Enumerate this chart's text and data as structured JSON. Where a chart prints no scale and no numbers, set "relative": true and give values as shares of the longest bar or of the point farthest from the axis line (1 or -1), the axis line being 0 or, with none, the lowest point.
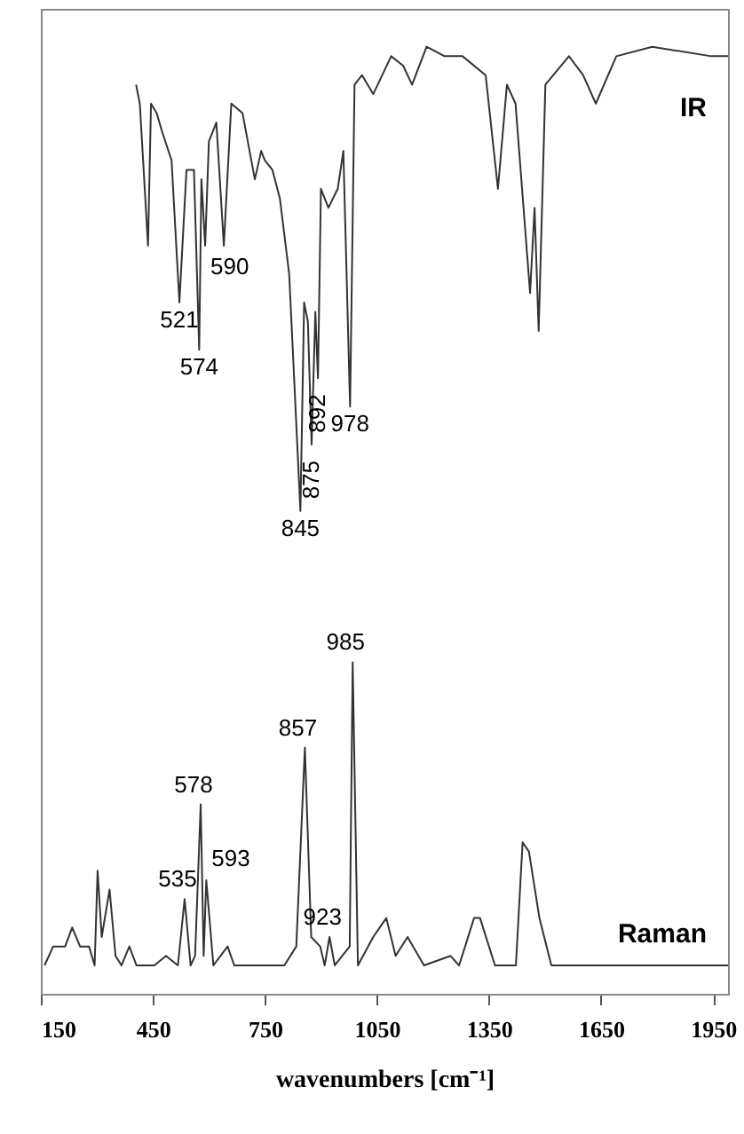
{
  "chart_data": {
    "type": "line",
    "relative": true,
    "xlabel": "wavenumbers [cm⁻¹]",
    "xlim": [
      150,
      1990
    ],
    "xticks": [
      150,
      450,
      750,
      1050,
      1350,
      1650,
      1950
    ],
    "grid": false,
    "tick_labels": "x",
    "marker": "none",
    "line_style": "solid",
    "series": [
      {
        "name": "IR",
        "color": "#333333",
        "x": [
          405,
          415,
          437,
          445,
          460,
          475,
          500,
          521,
          540,
          560,
          574,
          580,
          590,
          600,
          620,
          640,
          660,
          690,
          723,
          740,
          750,
          770,
          790,
          815,
          845,
          855,
          865,
          875,
          885,
          892,
          900,
          920,
          945,
          960,
          978,
          990,
          1010,
          1040,
          1088,
          1120,
          1144,
          1183,
          1231,
          1279,
          1341,
          1374,
          1398,
          1421,
          1460,
          1472,
          1483,
          1501,
          1564,
          1602,
          1636,
          1691,
          1787,
          1945,
          1990
        ],
        "values": [
          0.96,
          0.94,
          0.79,
          0.94,
          0.93,
          0.91,
          0.88,
          0.73,
          0.87,
          0.87,
          0.68,
          0.86,
          0.79,
          0.9,
          0.92,
          0.79,
          0.94,
          0.93,
          0.86,
          0.89,
          0.88,
          0.87,
          0.84,
          0.76,
          0.51,
          0.73,
          0.71,
          0.58,
          0.72,
          0.65,
          0.85,
          0.83,
          0.85,
          0.89,
          0.62,
          0.96,
          0.97,
          0.95,
          0.99,
          0.98,
          0.96,
          1.0,
          0.99,
          0.99,
          0.97,
          0.85,
          0.96,
          0.94,
          0.74,
          0.83,
          0.7,
          0.96,
          0.99,
          0.97,
          0.94,
          0.99,
          1.0,
          0.99,
          0.99
        ]
      },
      {
        "name": "Raman",
        "color": "#333333",
        "x": [
          160,
          183,
          215,
          234,
          255,
          279,
          294,
          302,
          313,
          334,
          350,
          366,
          387,
          406,
          454,
          485,
          517,
          535,
          551,
          563,
          578,
          586,
          593,
          612,
          650,
          668,
          802,
          834,
          857,
          874,
          898,
          910,
          923,
          937,
          977,
          985,
          999,
          1040,
          1075,
          1100,
          1132,
          1176,
          1247,
          1270,
          1310,
          1326,
          1366,
          1422,
          1440,
          1457,
          1485,
          1517,
          1990
        ],
        "values": [
          0.03,
          0.05,
          0.05,
          0.07,
          0.05,
          0.05,
          0.03,
          0.13,
          0.06,
          0.11,
          0.04,
          0.03,
          0.05,
          0.03,
          0.03,
          0.04,
          0.03,
          0.1,
          0.03,
          0.04,
          0.2,
          0.04,
          0.12,
          0.03,
          0.05,
          0.03,
          0.03,
          0.05,
          0.26,
          0.06,
          0.05,
          0.03,
          0.06,
          0.03,
          0.05,
          0.35,
          0.03,
          0.06,
          0.08,
          0.04,
          0.06,
          0.03,
          0.04,
          0.03,
          0.08,
          0.08,
          0.03,
          0.03,
          0.16,
          0.15,
          0.08,
          0.03,
          0.03
        ]
      }
    ],
    "annotations": [
      {
        "text": "521",
        "x": 521,
        "y": 0.73
      },
      {
        "text": "574",
        "x": 574,
        "y": 0.68
      },
      {
        "text": "590",
        "x": 590,
        "y": 0.79
      },
      {
        "text": "845",
        "x": 845,
        "y": 0.51
      },
      {
        "text": "875",
        "x": 875,
        "y": 0.58
      },
      {
        "text": "892",
        "x": 892,
        "y": 0.65
      },
      {
        "text": "978",
        "x": 978,
        "y": 0.62
      },
      {
        "text": "535",
        "x": 535,
        "y": 0.1
      },
      {
        "text": "578",
        "x": 578,
        "y": 0.2
      },
      {
        "text": "593",
        "x": 593,
        "y": 0.12
      },
      {
        "text": "857",
        "x": 857,
        "y": 0.26
      },
      {
        "text": "923",
        "x": 923,
        "y": 0.06
      },
      {
        "text": "985",
        "x": 985,
        "y": 0.35
      }
    ]
  }
}
